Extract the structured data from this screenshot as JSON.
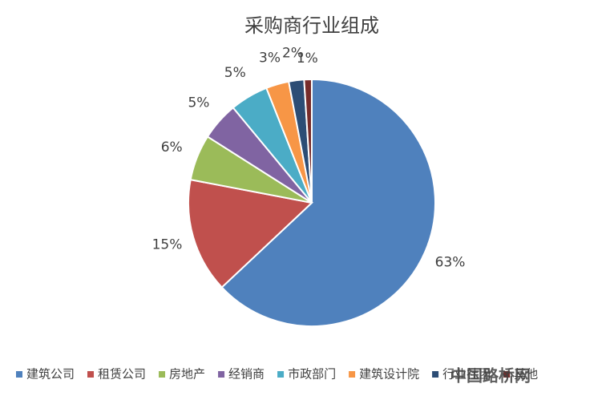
{
  "chart_data": {
    "type": "pie",
    "title": "采购商行业组成",
    "categories": [
      "建筑公司",
      "租赁公司",
      "房地产",
      "经销商",
      "市政部门",
      "建筑设计院",
      "行业社团",
      "其他"
    ],
    "values": [
      63,
      15,
      6,
      5,
      5,
      3,
      2,
      1
    ],
    "value_labels": [
      "63%",
      "15%",
      "6%",
      "5%",
      "5%",
      "3%",
      "2%",
      "1%"
    ],
    "colors": [
      "#4f81bd",
      "#c0504d",
      "#9bbb59",
      "#8064a2",
      "#4bacc6",
      "#f79646",
      "#2c4d75",
      "#772c2a"
    ],
    "legend": "bottom"
  },
  "watermark": "中国路桥网"
}
